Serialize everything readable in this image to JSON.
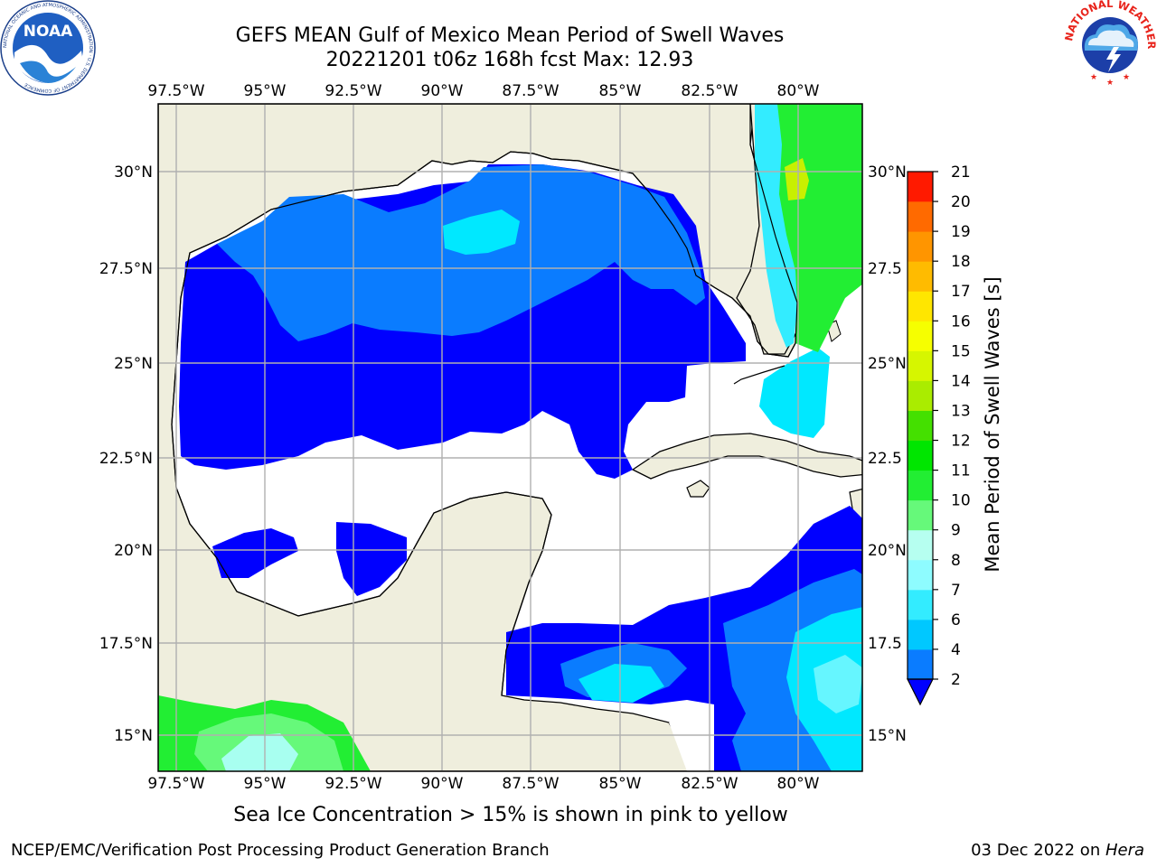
{
  "header": {
    "title_line1": "GEFS MEAN Gulf of Mexico Mean Period of Swell Waves",
    "title_line2": "20221201 t06z 168h fcst   Max: 12.93"
  },
  "map": {
    "lon_labels": [
      "97.5°W",
      "95°W",
      "92.5°W",
      "90°W",
      "87.5°W",
      "85°W",
      "82.5°W",
      "80°W"
    ],
    "lat_labels_left": [
      "30°N",
      "27.5°N",
      "25°N",
      "22.5°N",
      "20°N",
      "17.5°N",
      "15°N"
    ],
    "lat_labels_right": [
      "30°N",
      "27.5",
      "25°N",
      "22.5",
      "20°N",
      "17.5",
      "15°N"
    ],
    "land_color": "#efeedd",
    "grid_color": "#b0b0b0"
  },
  "colorbar": {
    "label": "Mean Period of Swell Waves [s]",
    "ticks": [
      "2",
      "4",
      "6",
      "7",
      "8",
      "9",
      "10",
      "11",
      "12",
      "13",
      "14",
      "15",
      "16",
      "17",
      "18",
      "19",
      "20",
      "21"
    ],
    "colors": [
      "#0a7cff",
      "#00c8ff",
      "#33ecff",
      "#8efcff",
      "#b6fff0",
      "#66f97a",
      "#22ee33",
      "#00e600",
      "#44e000",
      "#aaec00",
      "#d6f600",
      "#f6ff00",
      "#ffe600",
      "#ffbb00",
      "#ff9500",
      "#ff6a00",
      "#ff3f00",
      "#ff1a00"
    ],
    "under_color": "#0000ff"
  },
  "footer": {
    "note": "Sea Ice Concentration > 15% is shown in pink to yellow",
    "credit_left": "NCEP/EMC/Verification Post Processing Product Generation Branch",
    "credit_date": "03 Dec 2022 on ",
    "credit_host": "Hera"
  },
  "logos": {
    "noaa_text": "NOAA",
    "noaa_ring": "NATIONAL OCEANIC AND ATMOSPHERIC ADMINISTRATION · U.S. DEPARTMENT OF COMMERCE",
    "nws_ring": "NATIONAL WEATHER SERVICE"
  }
}
